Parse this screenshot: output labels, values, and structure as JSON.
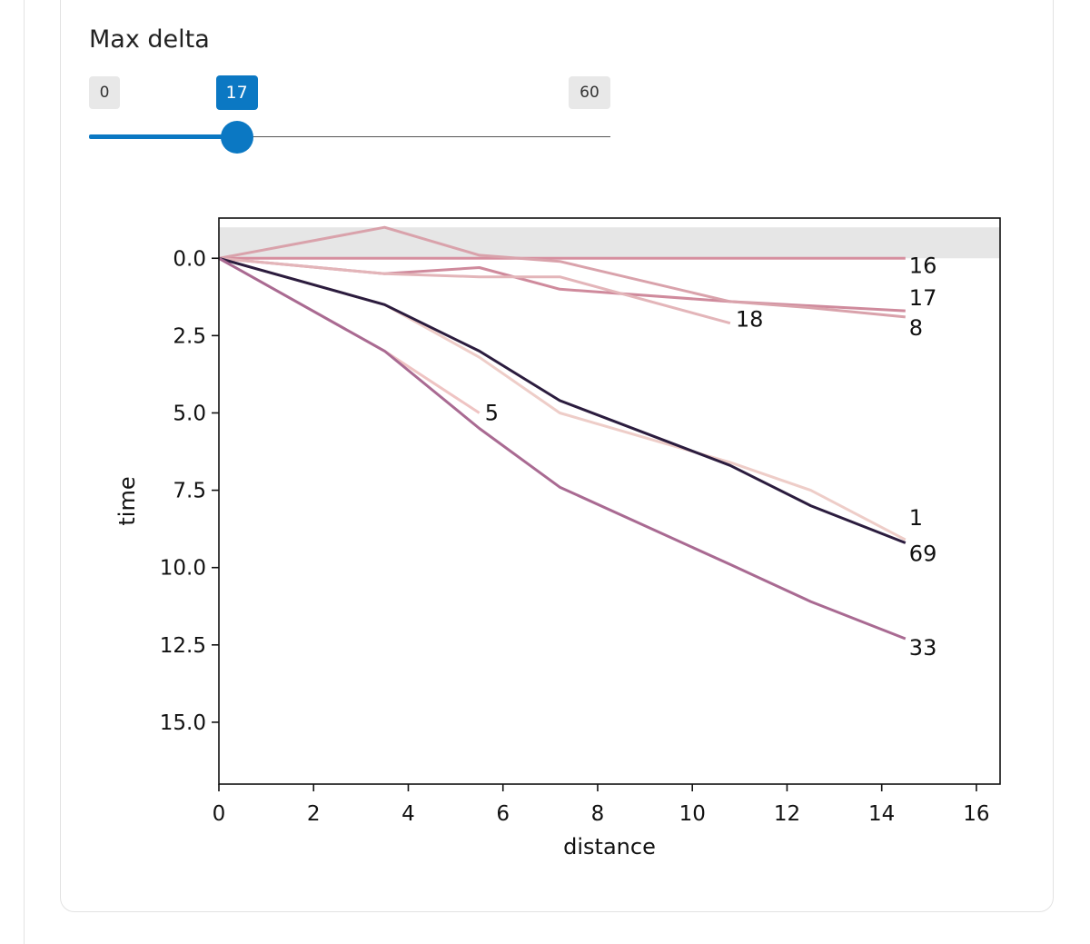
{
  "slider": {
    "title": "Max delta",
    "min_label": "0",
    "max_label": "60",
    "min": 0,
    "max": 60,
    "value": 17,
    "value_label": "17",
    "accent_color": "#0b78c3"
  },
  "chart_data": {
    "type": "line",
    "title": "",
    "xlabel": "distance",
    "ylabel": "time",
    "xlim": [
      0,
      16.5
    ],
    "ylim": [
      17,
      -1.3
    ],
    "y_inverted": true,
    "grid": false,
    "legend": "none",
    "x_ticks": [
      0,
      2,
      4,
      6,
      8,
      10,
      12,
      14,
      16
    ],
    "x_tick_labels": [
      "0",
      "2",
      "4",
      "6",
      "8",
      "10",
      "12",
      "14",
      "16"
    ],
    "y_ticks": [
      0,
      2.5,
      5,
      7.5,
      10,
      12.5,
      15
    ],
    "y_tick_labels": [
      "0.0",
      "2.5",
      "5.0",
      "7.5",
      "10.0",
      "12.5",
      "15.0"
    ],
    "band": {
      "y_from": -1,
      "y_to": 0,
      "color": "#e6e6e6"
    },
    "series": [
      {
        "label": "16",
        "color": "#d68f9f",
        "x": [
          0,
          14.5
        ],
        "y": [
          0,
          0
        ]
      },
      {
        "label": "17",
        "color": "#cf8a9c",
        "x": [
          0,
          3.5,
          5.5,
          7.2,
          10.8,
          14.5
        ],
        "y": [
          0,
          0.5,
          0.3,
          1.0,
          1.4,
          1.7
        ]
      },
      {
        "label": "18",
        "color": "#e3b5b9",
        "x": [
          0,
          3.5,
          5.5,
          7.2,
          10.8
        ],
        "y": [
          0,
          0.5,
          0.6,
          0.6,
          2.1
        ]
      },
      {
        "label": "8",
        "color": "#d9a2ab",
        "x": [
          0,
          3.5,
          5.5,
          7.2,
          10.8,
          12.5,
          14.5
        ],
        "y": [
          0,
          -1.0,
          -0.1,
          0.1,
          1.4,
          1.6,
          1.9
        ]
      },
      {
        "label": "5",
        "color": "#efc4c3",
        "x": [
          0,
          3.5,
          5.5
        ],
        "y": [
          0,
          3.0,
          5.0
        ]
      },
      {
        "label": "1",
        "color": "#eecdc8",
        "x": [
          0,
          3.5,
          5.5,
          7.2,
          10.8,
          12.5,
          14.5
        ],
        "y": [
          0,
          1.5,
          3.2,
          5.0,
          6.6,
          7.5,
          9.1
        ]
      },
      {
        "label": "69",
        "color": "#2b1c3e",
        "x": [
          0,
          3.5,
          5.5,
          7.2,
          10.8,
          12.5,
          14.5
        ],
        "y": [
          0,
          1.5,
          3.0,
          4.6,
          6.7,
          8.0,
          9.2
        ]
      },
      {
        "label": "33",
        "color": "#a96a92",
        "x": [
          0,
          3.5,
          5.5,
          7.2,
          10.8,
          12.5,
          14.5
        ],
        "y": [
          0,
          3.0,
          5.5,
          7.4,
          9.9,
          11.1,
          12.3
        ]
      }
    ]
  }
}
